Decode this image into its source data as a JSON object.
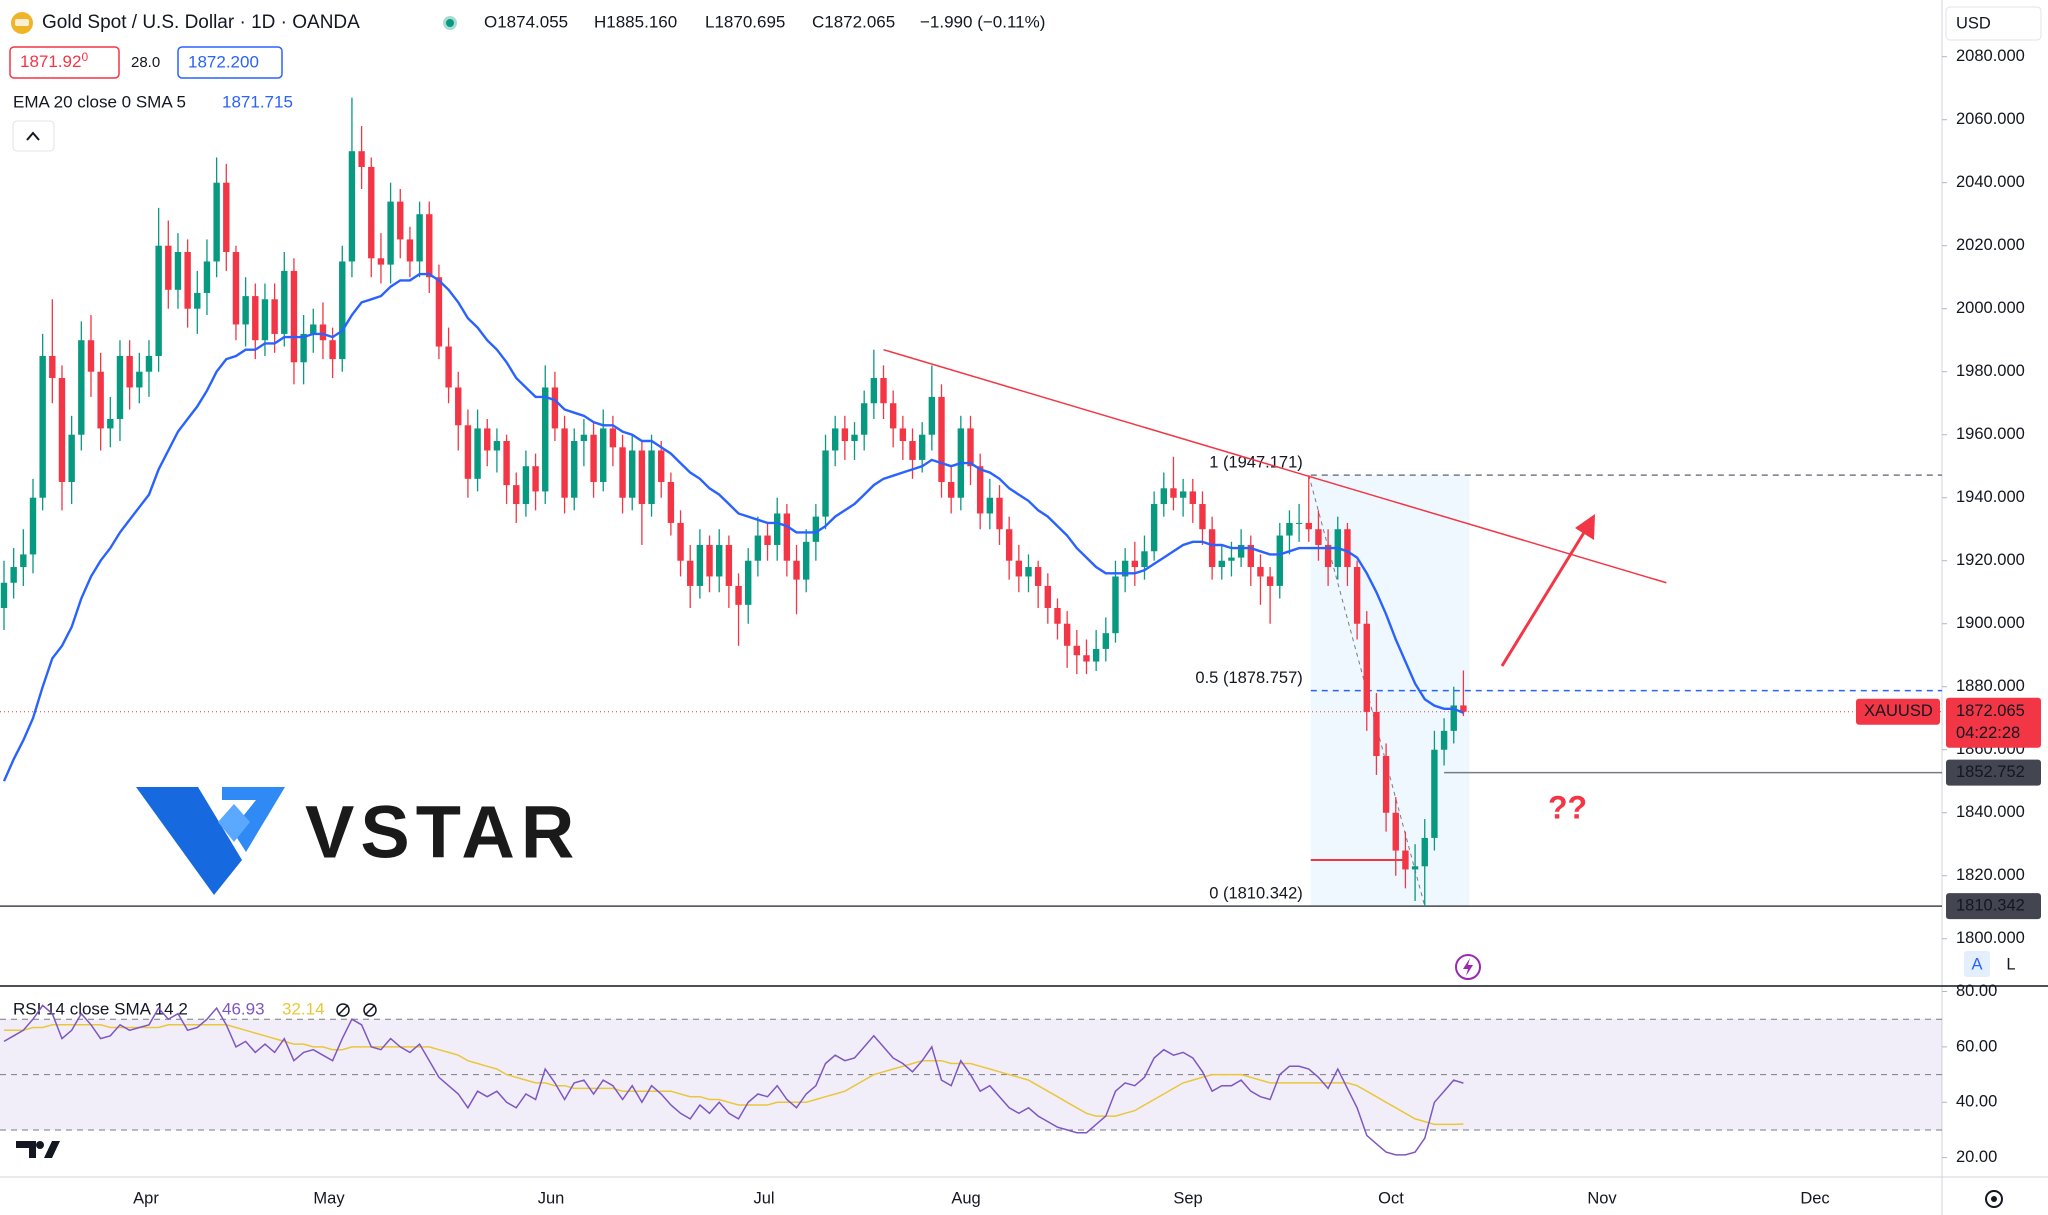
{
  "chart_data": {
    "type": "candlestick",
    "title": "Gold Spot / U.S. Dollar · 1D · OANDA",
    "ohlc_text": [
      "O1874.055",
      "H1885.160",
      "L1870.695",
      "C1872.065"
    ],
    "change": "−1.990 (−0.11%)",
    "bid": {
      "main": "1871.92",
      "tail": "0"
    },
    "spread": "28.0",
    "ask": "1872.200",
    "ema_legend": "EMA 20 close 0 SMA 5",
    "rsi_legend": "RSI 14 close SMA 14 2",
    "currency": "USD",
    "symbol": "XAUUSD",
    "countdown": "04:22:28",
    "annotation": "??",
    "watermark": "VSTAR",
    "buttons": [
      "A",
      "L"
    ],
    "x_labels": [
      "Apr",
      "May",
      "Jun",
      "Jul",
      "Aug",
      "Sep",
      "Oct",
      "Nov",
      "Dec"
    ],
    "up_color": "#089981",
    "down_color": "#f23645",
    "ylim": [
      1785,
      2098
    ],
    "yticks": [
      {
        "value": 2080,
        "label": "2080.000"
      },
      {
        "value": 2060,
        "label": "2060.000"
      },
      {
        "value": 2040,
        "label": "2040.000"
      },
      {
        "value": 2020,
        "label": "2020.000"
      },
      {
        "value": 2000,
        "label": "2000.000"
      },
      {
        "value": 1980,
        "label": "1980.000"
      },
      {
        "value": 1960,
        "label": "1960.000"
      },
      {
        "value": 1940,
        "label": "1940.000"
      },
      {
        "value": 1920,
        "label": "1920.000"
      },
      {
        "value": 1900,
        "label": "1900.000"
      },
      {
        "value": 1880,
        "label": "1880.000"
      },
      {
        "value": 1860,
        "label": "1860.000"
      },
      {
        "value": 1840,
        "label": "1840.000"
      },
      {
        "value": 1820,
        "label": "1820.000"
      },
      {
        "value": 1800,
        "label": "1800.000"
      }
    ],
    "grid": false,
    "candles": [
      [
        1905,
        1920,
        1898,
        1913
      ],
      [
        1913,
        1924,
        1908,
        1918
      ],
      [
        1918,
        1930,
        1912,
        1922
      ],
      [
        1922,
        1946,
        1916,
        1940
      ],
      [
        1940,
        1992,
        1936,
        1985
      ],
      [
        1985,
        2003,
        1970,
        1978
      ],
      [
        1978,
        1982,
        1936,
        1945
      ],
      [
        1945,
        1966,
        1938,
        1960
      ],
      [
        1960,
        1996,
        1955,
        1990
      ],
      [
        1990,
        1998,
        1972,
        1980
      ],
      [
        1980,
        1986,
        1955,
        1962
      ],
      [
        1962,
        1972,
        1956,
        1965
      ],
      [
        1965,
        1990,
        1958,
        1985
      ],
      [
        1985,
        1990,
        1968,
        1975
      ],
      [
        1975,
        1986,
        1970,
        1980
      ],
      [
        1980,
        1990,
        1972,
        1985
      ],
      [
        1985,
        2032,
        1980,
        2020
      ],
      [
        2020,
        2028,
        2000,
        2006
      ],
      [
        2006,
        2024,
        2000,
        2018
      ],
      [
        2018,
        2022,
        1994,
        2000
      ],
      [
        2000,
        2012,
        1992,
        2005
      ],
      [
        2005,
        2022,
        1998,
        2015
      ],
      [
        2015,
        2048,
        2010,
        2040
      ],
      [
        2040,
        2046,
        2012,
        2018
      ],
      [
        2018,
        2020,
        1990,
        1995
      ],
      [
        1995,
        2010,
        1988,
        2004
      ],
      [
        2004,
        2008,
        1984,
        1990
      ],
      [
        1990,
        2008,
        1985,
        2003
      ],
      [
        2003,
        2008,
        1986,
        1992
      ],
      [
        1992,
        2018,
        1988,
        2012
      ],
      [
        2012,
        2016,
        1976,
        1983
      ],
      [
        1983,
        1998,
        1976,
        1992
      ],
      [
        1992,
        2000,
        1986,
        1995
      ],
      [
        1995,
        2002,
        1984,
        1990
      ],
      [
        1990,
        1994,
        1978,
        1984
      ],
      [
        1984,
        2020,
        1980,
        2015
      ],
      [
        2015,
        2067,
        2010,
        2050
      ],
      [
        2050,
        2058,
        2038,
        2045
      ],
      [
        2045,
        2048,
        2010,
        2016
      ],
      [
        2016,
        2024,
        2008,
        2014
      ],
      [
        2014,
        2040,
        2008,
        2034
      ],
      [
        2034,
        2038,
        2016,
        2022
      ],
      [
        2022,
        2026,
        2010,
        2015
      ],
      [
        2015,
        2034,
        2010,
        2030
      ],
      [
        2030,
        2034,
        2005,
        2010
      ],
      [
        2010,
        2014,
        1984,
        1988
      ],
      [
        1988,
        1994,
        1970,
        1975
      ],
      [
        1975,
        1980,
        1955,
        1963
      ],
      [
        1963,
        1968,
        1940,
        1946
      ],
      [
        1946,
        1968,
        1942,
        1962
      ],
      [
        1962,
        1965,
        1950,
        1955
      ],
      [
        1955,
        1962,
        1948,
        1958
      ],
      [
        1958,
        1960,
        1938,
        1944
      ],
      [
        1944,
        1948,
        1932,
        1938
      ],
      [
        1938,
        1955,
        1934,
        1950
      ],
      [
        1950,
        1954,
        1936,
        1942
      ],
      [
        1942,
        1982,
        1938,
        1975
      ],
      [
        1975,
        1980,
        1958,
        1962
      ],
      [
        1962,
        1966,
        1935,
        1940
      ],
      [
        1940,
        1962,
        1936,
        1958
      ],
      [
        1958,
        1965,
        1950,
        1960
      ],
      [
        1960,
        1964,
        1940,
        1945
      ],
      [
        1945,
        1968,
        1942,
        1962
      ],
      [
        1962,
        1966,
        1950,
        1956
      ],
      [
        1956,
        1960,
        1935,
        1940
      ],
      [
        1940,
        1960,
        1936,
        1955
      ],
      [
        1955,
        1958,
        1925,
        1938
      ],
      [
        1938,
        1960,
        1934,
        1955
      ],
      [
        1955,
        1958,
        1940,
        1945
      ],
      [
        1945,
        1948,
        1928,
        1932
      ],
      [
        1932,
        1936,
        1915,
        1920
      ],
      [
        1920,
        1925,
        1905,
        1912
      ],
      [
        1912,
        1930,
        1908,
        1925
      ],
      [
        1925,
        1928,
        1910,
        1915
      ],
      [
        1915,
        1930,
        1910,
        1925
      ],
      [
        1925,
        1928,
        1905,
        1912
      ],
      [
        1912,
        1916,
        1893,
        1906
      ],
      [
        1906,
        1924,
        1900,
        1920
      ],
      [
        1920,
        1934,
        1915,
        1928
      ],
      [
        1928,
        1932,
        1920,
        1925
      ],
      [
        1925,
        1940,
        1920,
        1935
      ],
      [
        1935,
        1938,
        1915,
        1920
      ],
      [
        1920,
        1925,
        1903,
        1914
      ],
      [
        1914,
        1930,
        1910,
        1926
      ],
      [
        1926,
        1938,
        1920,
        1934
      ],
      [
        1934,
        1960,
        1930,
        1955
      ],
      [
        1955,
        1966,
        1950,
        1962
      ],
      [
        1962,
        1966,
        1952,
        1958
      ],
      [
        1958,
        1964,
        1952,
        1960
      ],
      [
        1960,
        1974,
        1955,
        1970
      ],
      [
        1970,
        1987,
        1965,
        1978
      ],
      [
        1978,
        1982,
        1965,
        1970
      ],
      [
        1970,
        1974,
        1956,
        1962
      ],
      [
        1962,
        1966,
        1952,
        1958
      ],
      [
        1958,
        1962,
        1946,
        1952
      ],
      [
        1952,
        1964,
        1948,
        1960
      ],
      [
        1960,
        1982,
        1955,
        1972
      ],
      [
        1972,
        1976,
        1940,
        1945
      ],
      [
        1945,
        1950,
        1935,
        1940
      ],
      [
        1940,
        1966,
        1936,
        1962
      ],
      [
        1962,
        1966,
        1944,
        1950
      ],
      [
        1950,
        1954,
        1930,
        1935
      ],
      [
        1935,
        1946,
        1930,
        1940
      ],
      [
        1940,
        1944,
        1925,
        1930
      ],
      [
        1930,
        1934,
        1914,
        1920
      ],
      [
        1920,
        1925,
        1910,
        1915
      ],
      [
        1915,
        1922,
        1910,
        1918
      ],
      [
        1918,
        1920,
        1905,
        1912
      ],
      [
        1912,
        1916,
        1900,
        1905
      ],
      [
        1905,
        1908,
        1895,
        1900
      ],
      [
        1900,
        1904,
        1886,
        1893
      ],
      [
        1893,
        1898,
        1884,
        1890
      ],
      [
        1890,
        1895,
        1884,
        1888
      ],
      [
        1888,
        1898,
        1885,
        1892
      ],
      [
        1892,
        1902,
        1888,
        1897
      ],
      [
        1897,
        1920,
        1894,
        1915
      ],
      [
        1915,
        1924,
        1910,
        1920
      ],
      [
        1920,
        1926,
        1912,
        1918
      ],
      [
        1918,
        1928,
        1914,
        1923
      ],
      [
        1923,
        1942,
        1920,
        1938
      ],
      [
        1938,
        1948,
        1934,
        1943
      ],
      [
        1943,
        1953,
        1936,
        1940
      ],
      [
        1940,
        1946,
        1934,
        1942
      ],
      [
        1942,
        1946,
        1932,
        1938
      ],
      [
        1938,
        1942,
        1925,
        1930
      ],
      [
        1930,
        1934,
        1914,
        1918
      ],
      [
        1918,
        1925,
        1914,
        1920
      ],
      [
        1920,
        1926,
        1915,
        1921
      ],
      [
        1921,
        1930,
        1918,
        1925
      ],
      [
        1925,
        1928,
        1912,
        1918
      ],
      [
        1918,
        1922,
        1906,
        1915
      ],
      [
        1915,
        1918,
        1900,
        1912
      ],
      [
        1912,
        1932,
        1908,
        1928
      ],
      [
        1928,
        1936,
        1922,
        1932
      ],
      [
        1932,
        1938,
        1926,
        1932
      ],
      [
        1932,
        1947,
        1926,
        1930
      ],
      [
        1930,
        1936,
        1920,
        1925
      ],
      [
        1925,
        1930,
        1912,
        1918
      ],
      [
        1918,
        1934,
        1914,
        1930
      ],
      [
        1930,
        1932,
        1912,
        1918
      ],
      [
        1918,
        1920,
        1895,
        1900
      ],
      [
        1900,
        1904,
        1866,
        1872
      ],
      [
        1872,
        1878,
        1852,
        1858
      ],
      [
        1858,
        1862,
        1834,
        1840
      ],
      [
        1840,
        1845,
        1820,
        1828
      ],
      [
        1828,
        1834,
        1816,
        1822
      ],
      [
        1822,
        1830,
        1812,
        1823
      ],
      [
        1823,
        1838,
        1810.342,
        1832
      ],
      [
        1832,
        1866,
        1828,
        1860
      ],
      [
        1860,
        1870,
        1855,
        1866
      ],
      [
        1866,
        1880,
        1862,
        1874.055
      ],
      [
        1874.055,
        1885.16,
        1870.695,
        1872.065
      ]
    ],
    "ema": {
      "color": "#2962ff",
      "values": [
        1850,
        1857,
        1863,
        1870,
        1880,
        1889,
        1893,
        1899,
        1908,
        1915,
        1920,
        1924,
        1929,
        1933,
        1937,
        1941,
        1949,
        1955,
        1961,
        1965,
        1969,
        1974,
        1980,
        1984,
        1985,
        1987,
        1987,
        1989,
        1989,
        1991,
        1991,
        1991,
        1992,
        1992,
        1991,
        1993,
        1998,
        2002,
        2003,
        2004,
        2007,
        2009,
        2009,
        2011,
        2011,
        2009,
        2006,
        2002,
        1997,
        1994,
        1990,
        1987,
        1983,
        1978,
        1975,
        1972,
        1972,
        1971,
        1968,
        1967,
        1966,
        1964,
        1963,
        1963,
        1961,
        1960,
        1958,
        1958,
        1956,
        1954,
        1951,
        1948,
        1946,
        1943,
        1941,
        1938,
        1935,
        1934,
        1933,
        1932,
        1932,
        1931,
        1929,
        1929,
        1929,
        1931,
        1934,
        1936,
        1938,
        1941,
        1944,
        1946,
        1947,
        1948,
        1949,
        1950,
        1952,
        1951,
        1950,
        1951,
        1951,
        1949,
        1948,
        1946,
        1943,
        1941,
        1939,
        1936,
        1934,
        1931,
        1928,
        1924,
        1921,
        1918,
        1916,
        1916,
        1916,
        1916,
        1917,
        1919,
        1921,
        1923,
        1925,
        1926,
        1926,
        1925,
        1925,
        1924,
        1924,
        1924,
        1923,
        1922,
        1922,
        1923,
        1924,
        1924,
        1924,
        1924,
        1924,
        1923,
        1921,
        1916,
        1910,
        1903,
        1895,
        1888,
        1881,
        1876,
        1874,
        1873,
        1873,
        1871.715
      ]
    },
    "trendline": {
      "color": "#f23645",
      "values": [
        1987,
        1913
      ]
    },
    "fib": {
      "levels": [
        {
          "label": "1 (1947.171)",
          "value": 1947.171,
          "color": "#787b86"
        },
        {
          "label": "0.5 (1878.757)",
          "value": 1878.757,
          "color": "#2962ff"
        },
        {
          "label": "0 (1810.342)",
          "value": 1810.342,
          "color": "#787b86"
        }
      ]
    },
    "hline": 1852.752,
    "poc": 1825,
    "rsi": {
      "color": "#7e57c2",
      "sma_color": "#e9c73a",
      "ylim": [
        13,
        82
      ],
      "bands": [
        70,
        50,
        30
      ],
      "yticks": [
        {
          "value": 80,
          "label": "80.00"
        },
        {
          "value": 60,
          "label": "60.00"
        },
        {
          "value": 40,
          "label": "40.00"
        },
        {
          "value": 20,
          "label": "20.00"
        }
      ],
      "values": [
        62,
        64,
        66,
        70,
        75,
        72,
        63,
        66,
        72,
        68,
        63,
        64,
        68,
        66,
        67,
        68,
        74,
        70,
        72,
        66,
        67,
        70,
        74,
        68,
        60,
        62,
        58,
        61,
        58,
        63,
        55,
        58,
        59,
        57,
        55,
        63,
        70,
        68,
        60,
        59,
        63,
        60,
        58,
        61,
        55,
        49,
        46,
        43,
        38,
        44,
        42,
        44,
        40,
        38,
        43,
        41,
        52,
        47,
        41,
        47,
        48,
        43,
        48,
        46,
        41,
        46,
        40,
        46,
        43,
        39,
        36,
        34,
        39,
        36,
        40,
        36,
        34,
        40,
        43,
        42,
        46,
        41,
        38,
        43,
        46,
        54,
        57,
        55,
        56,
        60,
        64,
        60,
        56,
        54,
        51,
        55,
        60,
        48,
        46,
        55,
        50,
        44,
        46,
        42,
        38,
        36,
        38,
        35,
        33,
        31,
        30,
        29,
        29,
        32,
        35,
        44,
        47,
        46,
        49,
        56,
        59,
        57,
        58,
        56,
        51,
        44,
        46,
        46,
        48,
        44,
        42,
        41,
        50,
        53,
        53,
        52,
        49,
        45,
        52,
        45,
        38,
        28,
        25,
        22,
        21,
        21,
        22,
        27,
        40,
        44,
        48,
        46.93
      ],
      "sma": [
        66,
        66,
        66,
        67,
        67,
        68,
        68,
        68,
        68,
        68,
        68,
        67,
        67,
        67,
        67,
        67,
        67,
        68,
        68,
        68,
        68,
        68,
        68,
        68,
        67,
        66,
        65,
        64,
        63,
        62,
        61,
        61,
        60,
        60,
        59,
        59,
        60,
        60,
        60,
        60,
        60,
        60,
        60,
        60,
        60,
        59,
        58,
        57,
        55,
        54,
        53,
        52,
        50,
        49,
        48,
        47,
        47,
        46,
        46,
        45,
        45,
        45,
        45,
        45,
        44,
        44,
        44,
        44,
        44,
        44,
        43,
        42,
        42,
        41,
        41,
        40,
        39,
        39,
        39,
        39,
        40,
        40,
        40,
        40,
        41,
        42,
        43,
        44,
        46,
        48,
        50,
        51,
        52,
        53,
        54,
        55,
        55,
        55,
        54,
        54,
        54,
        53,
        52,
        51,
        50,
        49,
        48,
        46,
        44,
        42,
        40,
        38,
        36,
        35,
        35,
        35,
        36,
        37,
        39,
        41,
        43,
        45,
        47,
        48,
        49,
        50,
        50,
        50,
        50,
        49,
        48,
        47,
        47,
        47,
        47,
        47,
        47,
        47,
        47,
        47,
        46,
        44,
        42,
        40,
        38,
        36,
        34,
        33,
        32,
        32,
        32,
        32.14
      ]
    }
  }
}
